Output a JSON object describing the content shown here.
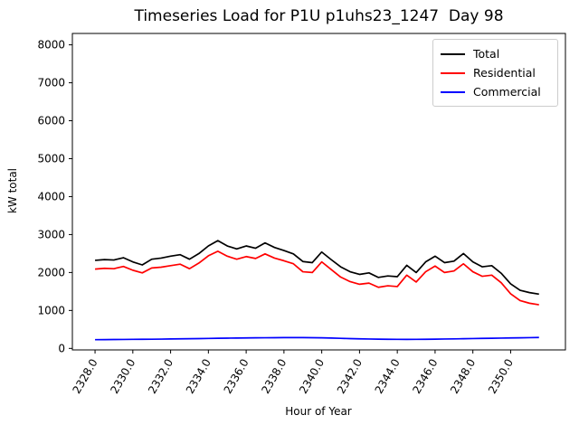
{
  "chart_data": {
    "type": "line",
    "title": "Timeseries Load for P1U p1uhs23_1247  Day 98",
    "xlabel": "Hour of Year",
    "ylabel": "kW total",
    "xlim": [
      2326.8,
      2352.9
    ],
    "ylim": [
      -40,
      8300
    ],
    "grid": false,
    "legend_position": "upper right",
    "x_ticks": {
      "values": [
        2328,
        2330,
        2332,
        2334,
        2336,
        2338,
        2340,
        2342,
        2344,
        2346,
        2348,
        2350
      ],
      "labels": [
        "2328.0",
        "2330.0",
        "2332.0",
        "2334.0",
        "2336.0",
        "2338.0",
        "2340.0",
        "2342.0",
        "2344.0",
        "2346.0",
        "2348.0",
        "2350.0"
      ]
    },
    "y_ticks": {
      "values": [
        0,
        1000,
        2000,
        3000,
        4000,
        5000,
        6000,
        7000,
        8000
      ],
      "labels": [
        "0",
        "1000",
        "2000",
        "3000",
        "4000",
        "5000",
        "6000",
        "7000",
        "8000"
      ]
    },
    "x": [
      2328.0,
      2328.5,
      2329.0,
      2329.5,
      2330.0,
      2330.5,
      2331.0,
      2331.5,
      2332.0,
      2332.5,
      2333.0,
      2333.5,
      2334.0,
      2334.5,
      2335.0,
      2335.5,
      2336.0,
      2336.5,
      2337.0,
      2337.5,
      2338.0,
      2338.5,
      2339.0,
      2339.5,
      2340.0,
      2340.5,
      2341.0,
      2341.5,
      2342.0,
      2342.5,
      2343.0,
      2343.5,
      2344.0,
      2344.5,
      2345.0,
      2345.5,
      2346.0,
      2346.5,
      2347.0,
      2347.5,
      2348.0,
      2348.5,
      2349.0,
      2349.5,
      2350.0,
      2350.5,
      2351.0,
      2351.5
    ],
    "series": [
      {
        "name": "Total",
        "color": "#000000",
        "values": [
          2320,
          2340,
          2330,
          2390,
          2280,
          2200,
          2350,
          2380,
          2430,
          2470,
          2350,
          2500,
          2700,
          2840,
          2700,
          2620,
          2700,
          2640,
          2780,
          2660,
          2580,
          2490,
          2290,
          2260,
          2540,
          2340,
          2150,
          2020,
          1950,
          1990,
          1870,
          1910,
          1890,
          2190,
          2000,
          2280,
          2430,
          2260,
          2300,
          2500,
          2280,
          2150,
          2180,
          1980,
          1700,
          1530,
          1470,
          1430
        ]
      },
      {
        "name": "Residential",
        "color": "#ff0000",
        "values": [
          2090,
          2110,
          2100,
          2160,
          2060,
          1990,
          2120,
          2140,
          2180,
          2220,
          2100,
          2250,
          2440,
          2560,
          2430,
          2350,
          2420,
          2370,
          2490,
          2380,
          2310,
          2230,
          2020,
          2000,
          2280,
          2080,
          1880,
          1760,
          1690,
          1720,
          1610,
          1650,
          1630,
          1930,
          1750,
          2020,
          2170,
          2000,
          2040,
          2230,
          2020,
          1900,
          1930,
          1730,
          1440,
          1260,
          1190,
          1150
        ]
      },
      {
        "name": "Commercial",
        "color": "#0000ff",
        "values": [
          230,
          232,
          234,
          236,
          238,
          240,
          242,
          245,
          248,
          252,
          255,
          258,
          262,
          266,
          270,
          273,
          276,
          278,
          280,
          282,
          284,
          285,
          284,
          282,
          278,
          272,
          265,
          258,
          252,
          247,
          243,
          240,
          238,
          237,
          238,
          240,
          243,
          247,
          251,
          255,
          259,
          263,
          267,
          271,
          275,
          279,
          283,
          287
        ]
      }
    ],
    "legend": [
      {
        "label": "Total",
        "color": "#000000"
      },
      {
        "label": "Residential",
        "color": "#ff0000"
      },
      {
        "label": "Commercial",
        "color": "#0000ff"
      }
    ]
  },
  "colors": {
    "axis": "#000000",
    "background": "#ffffff",
    "legend_border": "#cccccc"
  }
}
